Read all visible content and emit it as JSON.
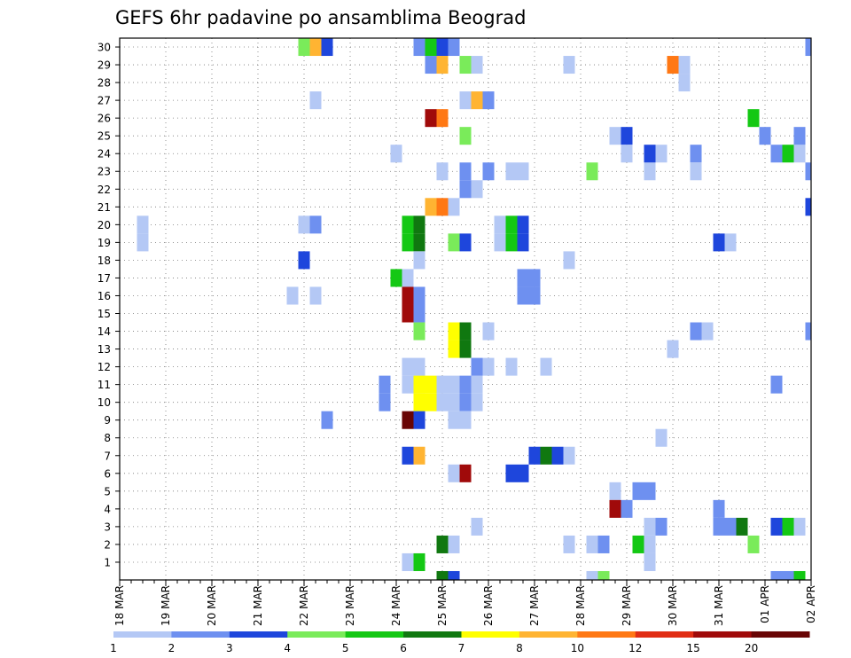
{
  "chart_data": {
    "type": "heatmap",
    "title": "GEFS 6hr padavine po ansamblima Beograd",
    "xlabel": "",
    "ylabel": "",
    "x_ticks": [
      "18 MAR",
      "19 MAR",
      "20 MAR",
      "21 MAR",
      "22 MAR",
      "23 MAR",
      "24 MAR",
      "25 MAR",
      "26 MAR",
      "27 MAR",
      "28 MAR",
      "29 MAR",
      "30 MAR",
      "31 MAR",
      "01 APR",
      "02 APR"
    ],
    "y_ticks": [
      "1",
      "2",
      "3",
      "4",
      "5",
      "6",
      "7",
      "8",
      "9",
      "10",
      "11",
      "12",
      "13",
      "14",
      "15",
      "16",
      "17",
      "18",
      "19",
      "20",
      "21",
      "22",
      "23",
      "24",
      "25",
      "26",
      "27",
      "28",
      "29",
      "30"
    ],
    "x_step_hours": 6,
    "x_range": [
      "18 MAR 00Z",
      "02 APR 00Z"
    ],
    "y_range": [
      0,
      30
    ],
    "grid": true,
    "legend_placement": "bottom",
    "legend": {
      "labels": [
        "1",
        "2",
        "3",
        "4",
        "5",
        "6",
        "7",
        "8",
        "10",
        "12",
        "15",
        "20"
      ],
      "colors": [
        "#b4c8f5",
        "#6e90f0",
        "#1e46dc",
        "#7aeb5a",
        "#14c814",
        "#107810",
        "#ffff00",
        "#ffb432",
        "#ff7814",
        "#e12d14",
        "#a00a0a",
        "#690505"
      ]
    },
    "cells": [
      {
        "t": "18 MAR 12Z",
        "member": 19,
        "value": 1.5
      },
      {
        "t": "18 MAR 12Z",
        "member": 20,
        "value": 1.5
      },
      {
        "t": "22 MAR 00Z",
        "member": 30,
        "value": 4.5
      },
      {
        "t": "22 MAR 06Z",
        "member": 30,
        "value": 9
      },
      {
        "t": "22 MAR 12Z",
        "member": 30,
        "value": 3.5
      },
      {
        "t": "22 MAR 06Z",
        "member": 27,
        "value": 1.5
      },
      {
        "t": "21 MAR 18Z",
        "member": 16,
        "value": 1.5
      },
      {
        "t": "22 MAR 06Z",
        "member": 16,
        "value": 1.5
      },
      {
        "t": "22 MAR 00Z",
        "member": 20,
        "value": 1.5
      },
      {
        "t": "22 MAR 06Z",
        "member": 20,
        "value": 2.5
      },
      {
        "t": "22 MAR 00Z",
        "member": 18,
        "value": 3.5
      },
      {
        "t": "22 MAR 12Z",
        "member": 9,
        "value": 2.5
      },
      {
        "t": "24 MAR 00Z",
        "member": 24,
        "value": 1.5
      },
      {
        "t": "24 MAR 00Z",
        "member": 17,
        "value": 5.5
      },
      {
        "t": "24 MAR 06Z",
        "member": 17,
        "value": 1.5
      },
      {
        "t": "24 MAR 06Z",
        "member": 15,
        "value": 15
      },
      {
        "t": "24 MAR 12Z",
        "member": 15,
        "value": 2.5
      },
      {
        "t": "24 MAR 06Z",
        "member": 16,
        "value": 15
      },
      {
        "t": "24 MAR 12Z",
        "member": 16,
        "value": 2.5
      },
      {
        "t": "24 MAR 12Z",
        "member": 14,
        "value": 4.5
      },
      {
        "t": "23 MAR 18Z",
        "member": 10,
        "value": 2.5
      },
      {
        "t": "23 MAR 18Z",
        "member": 11,
        "value": 2.5
      },
      {
        "t": "24 MAR 06Z",
        "member": 11,
        "value": 1.5
      },
      {
        "t": "24 MAR 12Z",
        "member": 11,
        "value": 1.5
      },
      {
        "t": "24 MAR 06Z",
        "member": 12,
        "value": 1.5
      },
      {
        "t": "24 MAR 12Z",
        "member": 12,
        "value": 1.5
      },
      {
        "t": "24 MAR 12Z",
        "member": 10,
        "value": 7.5
      },
      {
        "t": "24 MAR 18Z",
        "member": 10,
        "value": 7.5
      },
      {
        "t": "24 MAR 12Z",
        "member": 11,
        "value": 7.5
      },
      {
        "t": "24 MAR 18Z",
        "member": 11,
        "value": 7.5
      },
      {
        "t": "24 MAR 06Z",
        "member": 9,
        "value": 25
      },
      {
        "t": "24 MAR 12Z",
        "member": 9,
        "value": 3.5
      },
      {
        "t": "24 MAR 06Z",
        "member": 7,
        "value": 3.5
      },
      {
        "t": "24 MAR 12Z",
        "member": 7,
        "value": 9
      },
      {
        "t": "24 MAR 06Z",
        "member": 1,
        "value": 1.5
      },
      {
        "t": "24 MAR 12Z",
        "member": 1,
        "value": 5.5
      },
      {
        "t": "24 MAR 06Z",
        "member": 19,
        "value": 5.5
      },
      {
        "t": "24 MAR 12Z",
        "member": 19,
        "value": 6.5
      },
      {
        "t": "24 MAR 06Z",
        "member": 20,
        "value": 5.5
      },
      {
        "t": "24 MAR 12Z",
        "member": 20,
        "value": 6.5
      },
      {
        "t": "24 MAR 12Z",
        "member": 18,
        "value": 1.5
      },
      {
        "t": "24 MAR 12Z",
        "member": 30,
        "value": 2.5
      },
      {
        "t": "24 MAR 18Z",
        "member": 30,
        "value": 5.5
      },
      {
        "t": "25 MAR 00Z",
        "member": 30,
        "value": 3.5
      },
      {
        "t": "25 MAR 06Z",
        "member": 30,
        "value": 2.5
      },
      {
        "t": "24 MAR 18Z",
        "member": 29,
        "value": 2.5
      },
      {
        "t": "25 MAR 00Z",
        "member": 29,
        "value": 9
      },
      {
        "t": "25 MAR 12Z",
        "member": 29,
        "value": 4.5
      },
      {
        "t": "25 MAR 18Z",
        "member": 29,
        "value": 1.5
      },
      {
        "t": "24 MAR 18Z",
        "member": 26,
        "value": 17
      },
      {
        "t": "25 MAR 00Z",
        "member": 26,
        "value": 11
      },
      {
        "t": "24 MAR 18Z",
        "member": 21,
        "value": 9
      },
      {
        "t": "25 MAR 00Z",
        "member": 21,
        "value": 11
      },
      {
        "t": "25 MAR 06Z",
        "member": 21,
        "value": 1.5
      },
      {
        "t": "25 MAR 12Z",
        "member": 27,
        "value": 1.5
      },
      {
        "t": "25 MAR 18Z",
        "member": 27,
        "value": 9
      },
      {
        "t": "26 MAR 00Z",
        "member": 27,
        "value": 2.5
      },
      {
        "t": "25 MAR 12Z",
        "member": 25,
        "value": 4.5
      },
      {
        "t": "25 MAR 00Z",
        "member": 23,
        "value": 1.5
      },
      {
        "t": "25 MAR 12Z",
        "member": 23,
        "value": 2.5
      },
      {
        "t": "25 MAR 12Z",
        "member": 22,
        "value": 2.5
      },
      {
        "t": "25 MAR 18Z",
        "member": 22,
        "value": 1.5
      },
      {
        "t": "26 MAR 00Z",
        "member": 23,
        "value": 2.5
      },
      {
        "t": "26 MAR 12Z",
        "member": 23,
        "value": 1.5
      },
      {
        "t": "26 MAR 18Z",
        "member": 23,
        "value": 1.5
      },
      {
        "t": "25 MAR 06Z",
        "member": 19,
        "value": 4.5
      },
      {
        "t": "25 MAR 12Z",
        "member": 19,
        "value": 3.5
      },
      {
        "t": "25 MAR 06Z",
        "member": 13,
        "value": 7.5
      },
      {
        "t": "25 MAR 12Z",
        "member": 13,
        "value": 6.5
      },
      {
        "t": "25 MAR 06Z",
        "member": 14,
        "value": 7.5
      },
      {
        "t": "25 MAR 12Z",
        "member": 14,
        "value": 6.5
      },
      {
        "t": "25 MAR 00Z",
        "member": 10,
        "value": 1.5
      },
      {
        "t": "25 MAR 06Z",
        "member": 10,
        "value": 1.5
      },
      {
        "t": "25 MAR 12Z",
        "member": 10,
        "value": 2.5
      },
      {
        "t": "25 MAR 18Z",
        "member": 10,
        "value": 1.5
      },
      {
        "t": "25 MAR 00Z",
        "member": 11,
        "value": 1.5
      },
      {
        "t": "25 MAR 06Z",
        "member": 11,
        "value": 1.5
      },
      {
        "t": "25 MAR 12Z",
        "member": 11,
        "value": 2.5
      },
      {
        "t": "25 MAR 18Z",
        "member": 11,
        "value": 1.5
      },
      {
        "t": "25 MAR 06Z",
        "member": 9,
        "value": 1.5
      },
      {
        "t": "25 MAR 12Z",
        "member": 9,
        "value": 1.5
      },
      {
        "t": "25 MAR 06Z",
        "member": 6,
        "value": 1.5
      },
      {
        "t": "25 MAR 12Z",
        "member": 6,
        "value": 17
      },
      {
        "t": "25 MAR 00Z",
        "member": 2,
        "value": 6.5
      },
      {
        "t": "25 MAR 06Z",
        "member": 2,
        "value": 1.5
      },
      {
        "t": "25 MAR 00Z",
        "member": 0,
        "value": 6.5
      },
      {
        "t": "25 MAR 06Z",
        "member": 0,
        "value": 3.5
      },
      {
        "t": "25 MAR 18Z",
        "member": 12,
        "value": 2.5
      },
      {
        "t": "26 MAR 00Z",
        "member": 12,
        "value": 1.5
      },
      {
        "t": "26 MAR 12Z",
        "member": 12,
        "value": 1.5
      },
      {
        "t": "25 MAR 18Z",
        "member": 3,
        "value": 1.5
      },
      {
        "t": "26 MAR 00Z",
        "member": 14,
        "value": 1.5
      },
      {
        "t": "26 MAR 06Z",
        "member": 19,
        "value": 1.5
      },
      {
        "t": "26 MAR 12Z",
        "member": 19,
        "value": 5.5
      },
      {
        "t": "26 MAR 18Z",
        "member": 19,
        "value": 3.5
      },
      {
        "t": "26 MAR 06Z",
        "member": 20,
        "value": 1.5
      },
      {
        "t": "26 MAR 12Z",
        "member": 20,
        "value": 5.5
      },
      {
        "t": "26 MAR 18Z",
        "member": 20,
        "value": 3.5
      },
      {
        "t": "26 MAR 12Z",
        "member": 6,
        "value": 3.5
      },
      {
        "t": "26 MAR 18Z",
        "member": 6,
        "value": 3.5
      },
      {
        "t": "26 MAR 18Z",
        "member": 16,
        "value": 2.5
      },
      {
        "t": "27 MAR 00Z",
        "member": 16,
        "value": 2.5
      },
      {
        "t": "26 MAR 18Z",
        "member": 17,
        "value": 2.5
      },
      {
        "t": "27 MAR 00Z",
        "member": 17,
        "value": 2.5
      },
      {
        "t": "27 MAR 00Z",
        "member": 7,
        "value": 3.5
      },
      {
        "t": "27 MAR 06Z",
        "member": 7,
        "value": 6.5
      },
      {
        "t": "27 MAR 12Z",
        "member": 7,
        "value": 3.5
      },
      {
        "t": "27 MAR 18Z",
        "member": 7,
        "value": 1.5
      },
      {
        "t": "27 MAR 06Z",
        "member": 12,
        "value": 1.5
      },
      {
        "t": "27 MAR 18Z",
        "member": 18,
        "value": 1.5
      },
      {
        "t": "27 MAR 18Z",
        "member": 29,
        "value": 1.5
      },
      {
        "t": "27 MAR 18Z",
        "member": 2,
        "value": 1.5
      },
      {
        "t": "28 MAR 06Z",
        "member": 2,
        "value": 1.5
      },
      {
        "t": "28 MAR 06Z",
        "member": 0,
        "value": 1.5
      },
      {
        "t": "28 MAR 12Z",
        "member": 2,
        "value": 2.5
      },
      {
        "t": "28 MAR 12Z",
        "member": 0,
        "value": 4.5
      },
      {
        "t": "28 MAR 06Z",
        "member": 23,
        "value": 4.5
      },
      {
        "t": "28 MAR 18Z",
        "member": 25,
        "value": 1.5
      },
      {
        "t": "29 MAR 00Z",
        "member": 25,
        "value": 3.5
      },
      {
        "t": "29 MAR 00Z",
        "member": 24,
        "value": 1.5
      },
      {
        "t": "29 MAR 12Z",
        "member": 23,
        "value": 1.5
      },
      {
        "t": "28 MAR 18Z",
        "member": 5,
        "value": 1.5
      },
      {
        "t": "28 MAR 18Z",
        "member": 4,
        "value": 17
      },
      {
        "t": "29 MAR 00Z",
        "member": 4,
        "value": 2.5
      },
      {
        "t": "29 MAR 06Z",
        "member": 2,
        "value": 5.5
      },
      {
        "t": "29 MAR 12Z",
        "member": 2,
        "value": 1.5
      },
      {
        "t": "29 MAR 12Z",
        "member": 1,
        "value": 1.5
      },
      {
        "t": "29 MAR 06Z",
        "member": 5,
        "value": 2.5
      },
      {
        "t": "29 MAR 12Z",
        "member": 5,
        "value": 2.5
      },
      {
        "t": "29 MAR 12Z",
        "member": 3,
        "value": 1.5
      },
      {
        "t": "29 MAR 18Z",
        "member": 3,
        "value": 2.5
      },
      {
        "t": "29 MAR 12Z",
        "member": 24,
        "value": 3.5
      },
      {
        "t": "29 MAR 18Z",
        "member": 24,
        "value": 1.5
      },
      {
        "t": "29 MAR 18Z",
        "member": 8,
        "value": 1.5
      },
      {
        "t": "30 MAR 00Z",
        "member": 29,
        "value": 11
      },
      {
        "t": "30 MAR 06Z",
        "member": 29,
        "value": 1.5
      },
      {
        "t": "30 MAR 06Z",
        "member": 28,
        "value": 1.5
      },
      {
        "t": "30 MAR 00Z",
        "member": 13,
        "value": 1.5
      },
      {
        "t": "30 MAR 12Z",
        "member": 14,
        "value": 2.5
      },
      {
        "t": "30 MAR 18Z",
        "member": 14,
        "value": 1.5
      },
      {
        "t": "30 MAR 12Z",
        "member": 24,
        "value": 2.5
      },
      {
        "t": "30 MAR 12Z",
        "member": 23,
        "value": 1.5
      },
      {
        "t": "31 MAR 00Z",
        "member": 19,
        "value": 3.5
      },
      {
        "t": "31 MAR 06Z",
        "member": 19,
        "value": 1.5
      },
      {
        "t": "31 MAR 00Z",
        "member": 4,
        "value": 2.5
      },
      {
        "t": "31 MAR 00Z",
        "member": 3,
        "value": 2.5
      },
      {
        "t": "31 MAR 06Z",
        "member": 3,
        "value": 2.5
      },
      {
        "t": "31 MAR 12Z",
        "member": 3,
        "value": 6.5
      },
      {
        "t": "31 MAR 18Z",
        "member": 2,
        "value": 4.5
      },
      {
        "t": "31 MAR 18Z",
        "member": 26,
        "value": 5.5
      },
      {
        "t": "01 APR 00Z",
        "member": 25,
        "value": 2.5
      },
      {
        "t": "01 APR 06Z",
        "member": 24,
        "value": 2.5
      },
      {
        "t": "01 APR 12Z",
        "member": 24,
        "value": 5.5
      },
      {
        "t": "01 APR 18Z",
        "member": 24,
        "value": 1.5
      },
      {
        "t": "01 APR 18Z",
        "member": 25,
        "value": 2.5
      },
      {
        "t": "01 APR 06Z",
        "member": 11,
        "value": 2.5
      },
      {
        "t": "01 APR 06Z",
        "member": 3,
        "value": 3.5
      },
      {
        "t": "01 APR 12Z",
        "member": 3,
        "value": 5.5
      },
      {
        "t": "01 APR 18Z",
        "member": 3,
        "value": 1.5
      },
      {
        "t": "01 APR 06Z",
        "member": 0,
        "value": 2.5
      },
      {
        "t": "01 APR 12Z",
        "member": 0,
        "value": 2.5
      },
      {
        "t": "01 APR 18Z",
        "member": 0,
        "value": 5.5
      },
      {
        "t": "02 APR 00Z",
        "member": 30,
        "value": 2.5
      },
      {
        "t": "02 APR 00Z",
        "member": 23,
        "value": 2.5
      },
      {
        "t": "02 APR 00Z",
        "member": 21,
        "value": 3.5
      },
      {
        "t": "02 APR 00Z",
        "member": 14,
        "value": 2.5
      }
    ]
  }
}
